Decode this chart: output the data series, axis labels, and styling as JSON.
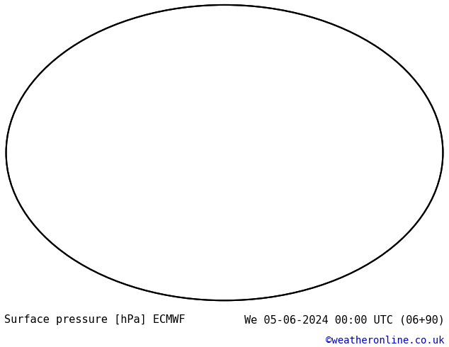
{
  "title_left": "Surface pressure [hPa] ECMWF",
  "title_right": "We 05-06-2024 00:00 UTC (06+90)",
  "copyright": "©weatheronline.co.uk",
  "bg_color": "#ffffff",
  "label_color_black": "#000000",
  "label_color_blue": "#0000cc",
  "title_fontsize": 11,
  "copyright_fontsize": 10,
  "fill_levels": [
    960,
    964,
    968,
    972,
    976,
    980,
    984,
    988,
    992,
    996,
    1000,
    1004,
    1008,
    1012,
    1016,
    1020,
    1024,
    1028,
    1032,
    1036,
    1040,
    1044,
    1048
  ],
  "fill_colors": [
    "#0000aa",
    "#0000cc",
    "#2222ee",
    "#4444ff",
    "#6666dd",
    "#8888cc",
    "#aaaacc",
    "#ccccdd",
    "#ddddee",
    "#eeeef5",
    "#f5f5f5",
    "#f5f5f5",
    "#f0f5f0",
    "#e0f0e0",
    "#c8e8c8",
    "#a8d8a8",
    "#88c888",
    "#68b868",
    "#ff9999",
    "#ff6666",
    "#ff3333",
    "#ff0000"
  ],
  "black_levels": [
    960,
    964,
    968,
    972,
    976,
    980,
    984,
    988,
    992,
    996,
    1000,
    1004,
    1008,
    1012,
    1016,
    1020,
    1024,
    1028,
    1032,
    1036,
    1040,
    1044
  ],
  "red_levels": [
    1016,
    1020,
    1024,
    1028,
    1032,
    1036,
    1040,
    1044
  ],
  "blue_levels": [
    960,
    964,
    968,
    972,
    976,
    980,
    984,
    988,
    992,
    996,
    1000,
    1004,
    1008
  ],
  "bold_level": 1013
}
